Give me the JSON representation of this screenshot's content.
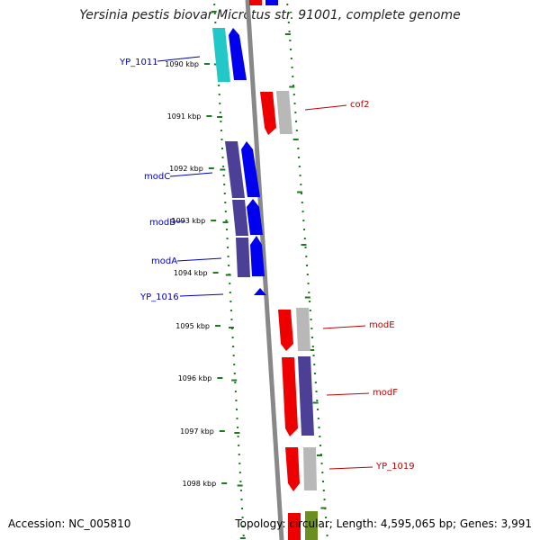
{
  "title": "Yersinia pestis biovar Microtus str. 91001, complete genome",
  "footer": {
    "accession": "Accession: NC_005810",
    "summary": "Topology: circular; Length: 4,595,065 bp; Genes: 3,991"
  },
  "colors": {
    "backbone": "#888888",
    "ruler_dots": "#1e7a1e",
    "left_label": "#0000bb",
    "right_label": "#bb0000",
    "gene_blue": "#0000ee",
    "gene_cyan": "#22c8c8",
    "gene_purple": "#4b3f96",
    "gene_red": "#ee0000",
    "gene_gray": "#b8b8b8",
    "gene_olive": "#6b8e23"
  },
  "ruler": {
    "ticks": [
      "1090 kbp",
      "1091 kbp",
      "1092 kbp",
      "1093 kbp",
      "1094 kbp",
      "1095 kbp",
      "1096 kbp",
      "1097 kbp",
      "1098 kbp"
    ]
  },
  "gene_labels": [
    {
      "text": "YP_1011",
      "side": "left"
    },
    {
      "text": "modC",
      "side": "left"
    },
    {
      "text": "modB",
      "side": "left"
    },
    {
      "text": "modA",
      "side": "left"
    },
    {
      "text": "YP_1016",
      "side": "left"
    },
    {
      "text": "cof2",
      "side": "right"
    },
    {
      "text": "modE",
      "side": "right"
    },
    {
      "text": "modF",
      "side": "right"
    },
    {
      "text": "YP_1019",
      "side": "right"
    }
  ]
}
